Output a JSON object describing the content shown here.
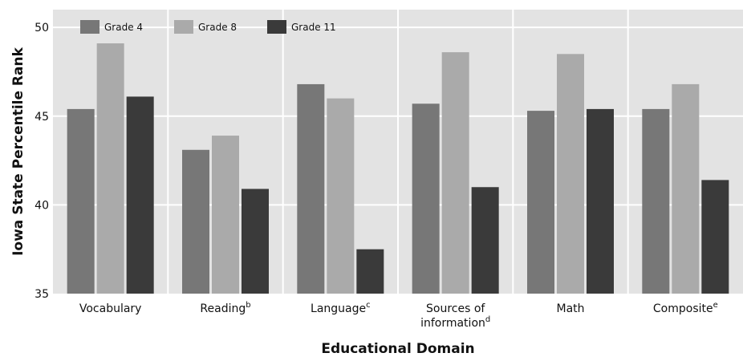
{
  "chart_data": {
    "type": "bar",
    "xlabel": "Educational Domain",
    "ylabel": "Iowa State Percentile Rank",
    "ylim": [
      35,
      51
    ],
    "yticks": [
      35,
      40,
      45,
      50
    ],
    "grid": true,
    "legend_position": "top-left",
    "categories": [
      {
        "label": "Vocabulary",
        "line2": "",
        "sup": ""
      },
      {
        "label": "Reading",
        "line2": "",
        "sup": "b"
      },
      {
        "label": "Language",
        "line2": "",
        "sup": "c"
      },
      {
        "label": "Sources of",
        "line2": "information",
        "sup": "d"
      },
      {
        "label": "Math",
        "line2": "",
        "sup": ""
      },
      {
        "label": "Composite",
        "line2": "",
        "sup": "e"
      }
    ],
    "series": [
      {
        "name": "Grade 4",
        "color": "#777777",
        "values": [
          45.4,
          43.1,
          46.8,
          45.7,
          45.3,
          45.4
        ]
      },
      {
        "name": "Grade 8",
        "color": "#aaaaaa",
        "values": [
          49.1,
          43.9,
          46.0,
          48.6,
          48.5,
          46.8
        ]
      },
      {
        "name": "Grade 11",
        "color": "#3a3a3a",
        "values": [
          46.1,
          40.9,
          37.5,
          41.0,
          45.4,
          41.4
        ]
      }
    ],
    "colors": {
      "plot_bg": "#e3e3e3",
      "grid": "#ffffff"
    }
  }
}
